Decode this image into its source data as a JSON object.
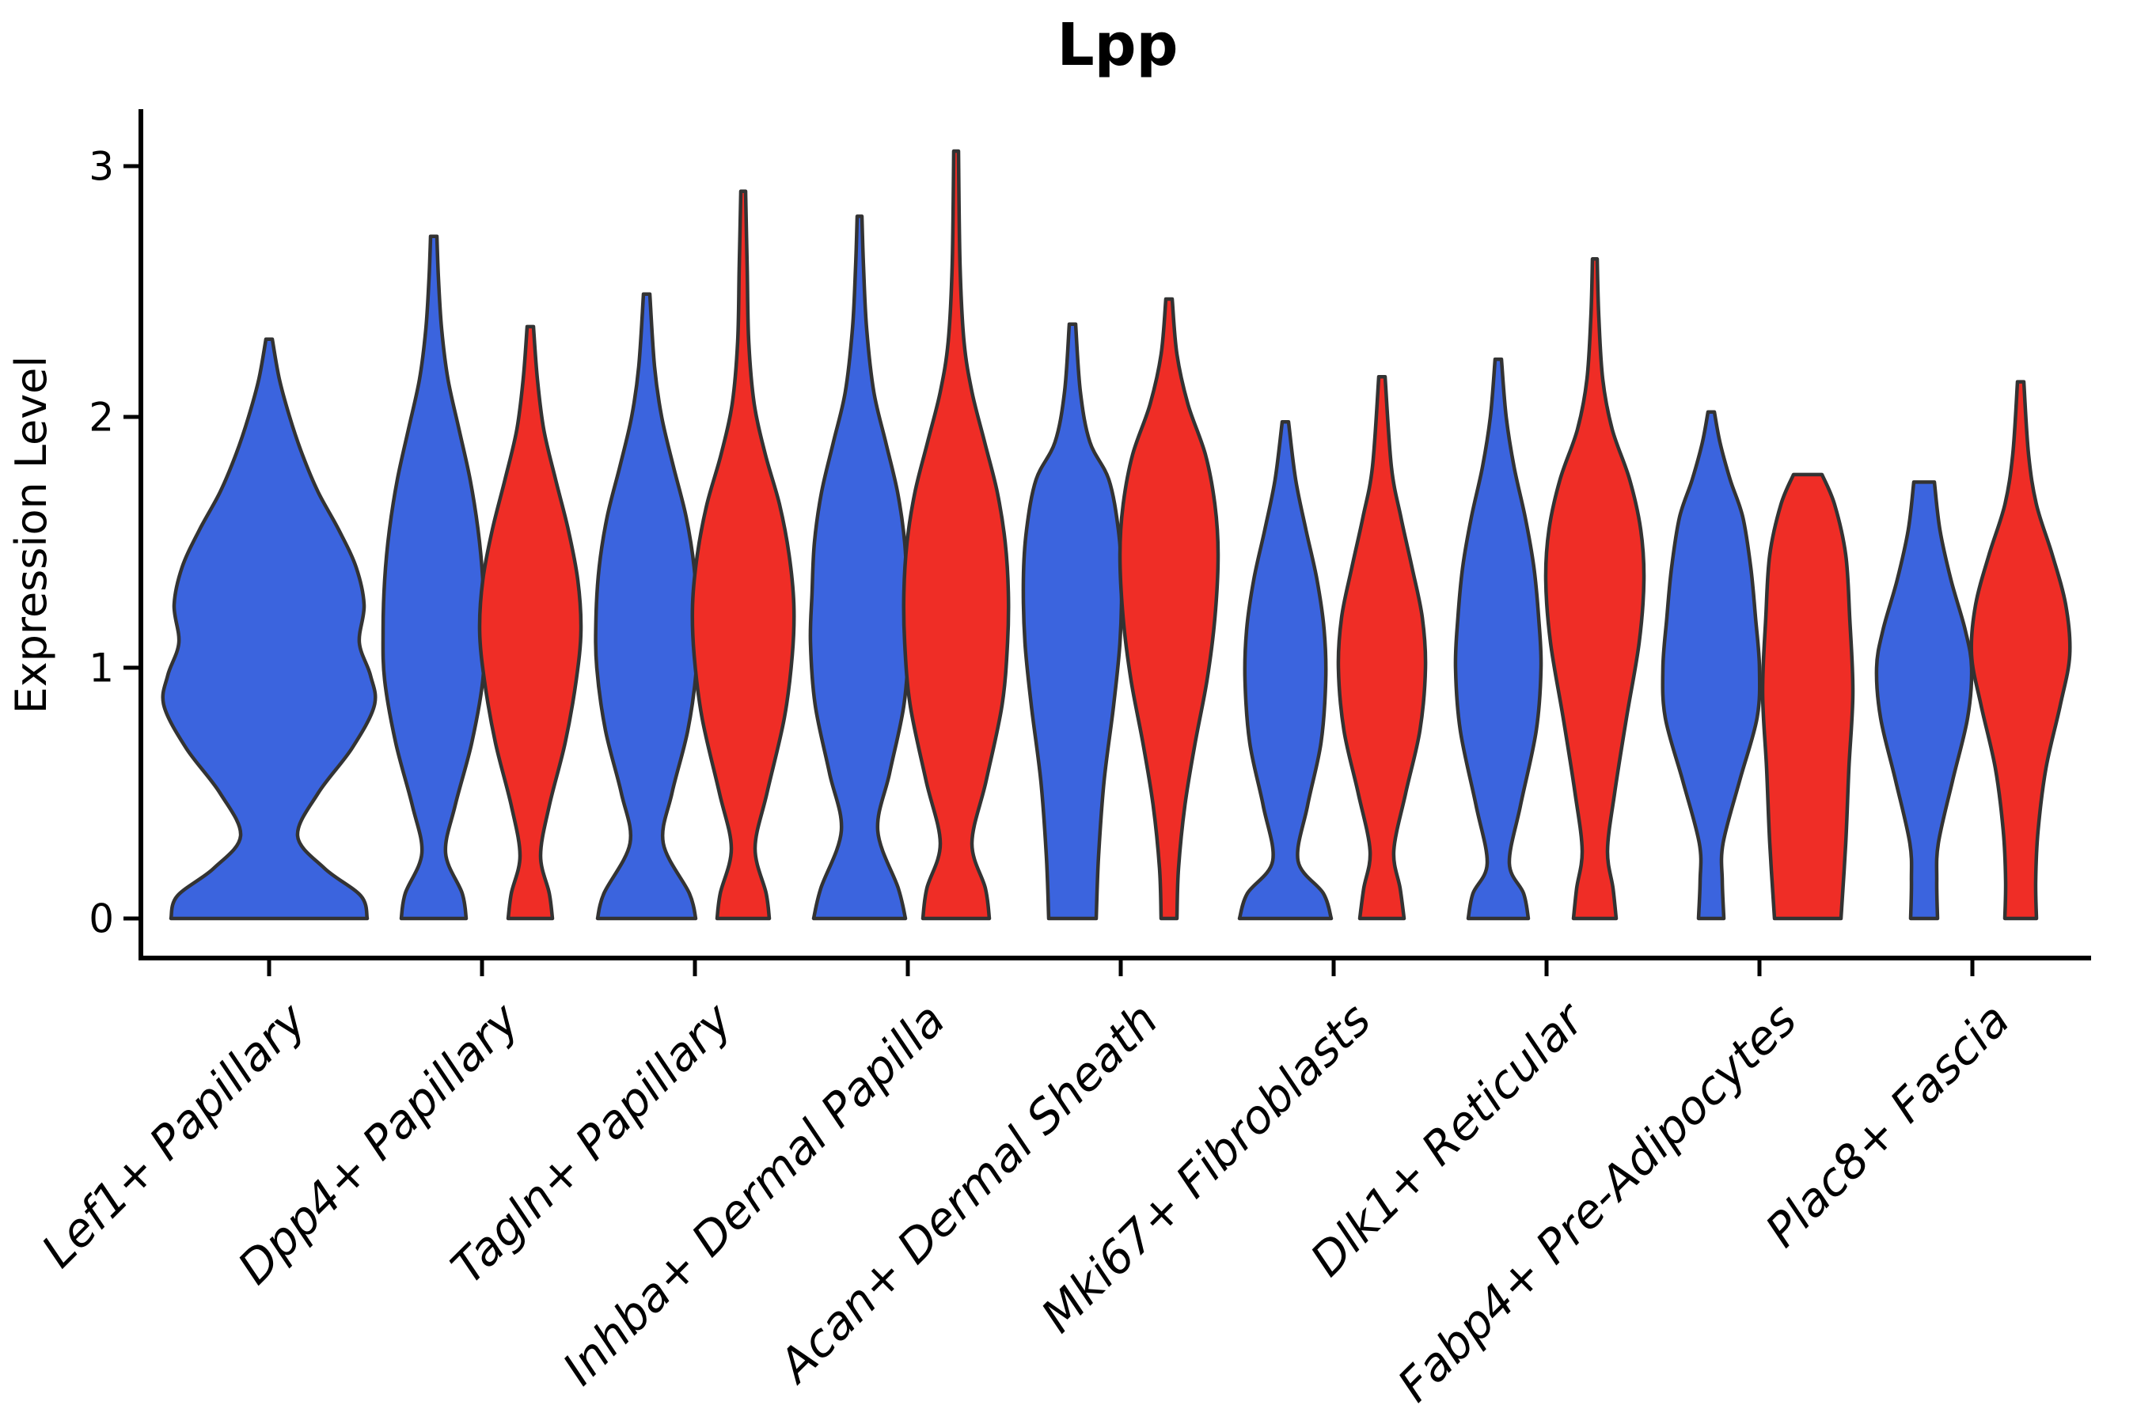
{
  "chart_data": {
    "type": "violin",
    "title": "Lpp",
    "xlabel": "",
    "ylabel": "Expression Level",
    "yticks": [
      "0",
      "1",
      "2",
      "3"
    ],
    "ylim": [
      -0.16,
      3.22
    ],
    "grid": "off",
    "legend": "none",
    "colors": {
      "group_a_fill": "#3B64DE",
      "group_b_fill": "#EF2D26",
      "violin_edge": "#333333",
      "axis": "#000000"
    },
    "categories": [
      "Lef1+ Papillary",
      "Dpp4+ Papillary",
      "Tagln+ Papillary",
      "Inhba+ Dermal Papilla",
      "Acan+ Dermal Sheath",
      "Mki67+ Fibroblasts",
      "Dlk1+ Reticular",
      "Fabp4+ Pre-Adipocytes",
      "Plac8+ Fascia"
    ],
    "violins": [
      {
        "category": "Lef1+ Papillary",
        "series": [
          {
            "group": "a",
            "max_expression": 2.31,
            "flat_top": false,
            "profile": [
              [
                0,
                124
              ],
              [
                0.09,
                116
              ],
              [
                0.2,
                70
              ],
              [
                0.33,
                36
              ],
              [
                0.5,
                62
              ],
              [
                0.68,
                105
              ],
              [
                0.85,
                133
              ],
              [
                0.97,
                128
              ],
              [
                1.1,
                114
              ],
              [
                1.25,
                120
              ],
              [
                1.4,
                110
              ],
              [
                1.55,
                88
              ],
              [
                1.7,
                62
              ],
              [
                1.85,
                42
              ],
              [
                2.0,
                26
              ],
              [
                2.15,
                13
              ],
              [
                2.31,
                4
              ]
            ]
          }
        ]
      },
      {
        "category": "Dpp4+ Papillary",
        "series": [
          {
            "group": "a",
            "max_expression": 2.72,
            "flat_top": false,
            "profile": [
              [
                0,
                41
              ],
              [
                0.1,
                36
              ],
              [
                0.26,
                15
              ],
              [
                0.45,
                27
              ],
              [
                0.7,
                48
              ],
              [
                0.95,
                62
              ],
              [
                1.15,
                64
              ],
              [
                1.35,
                62
              ],
              [
                1.55,
                56
              ],
              [
                1.75,
                46
              ],
              [
                1.95,
                32
              ],
              [
                2.15,
                18
              ],
              [
                2.35,
                10
              ],
              [
                2.55,
                6
              ],
              [
                2.72,
                4
              ]
            ]
          },
          {
            "group": "b",
            "max_expression": 2.36,
            "flat_top": false,
            "profile": [
              [
                0,
                28
              ],
              [
                0.1,
                24
              ],
              [
                0.25,
                13
              ],
              [
                0.45,
                24
              ],
              [
                0.7,
                44
              ],
              [
                0.95,
                58
              ],
              [
                1.15,
                64
              ],
              [
                1.35,
                60
              ],
              [
                1.55,
                48
              ],
              [
                1.75,
                32
              ],
              [
                1.95,
                17
              ],
              [
                2.15,
                9
              ],
              [
                2.36,
                4
              ]
            ]
          }
        ]
      },
      {
        "category": "Tagln+ Papillary",
        "series": [
          {
            "group": "a",
            "max_expression": 2.49,
            "flat_top": false,
            "profile": [
              [
                0,
                62
              ],
              [
                0.1,
                54
              ],
              [
                0.3,
                21
              ],
              [
                0.5,
                32
              ],
              [
                0.75,
                52
              ],
              [
                1.0,
                63
              ],
              [
                1.2,
                64
              ],
              [
                1.4,
                60
              ],
              [
                1.6,
                50
              ],
              [
                1.8,
                34
              ],
              [
                2.0,
                19
              ],
              [
                2.2,
                10
              ],
              [
                2.49,
                4
              ]
            ]
          },
          {
            "group": "b",
            "max_expression": 2.9,
            "flat_top": false,
            "profile": [
              [
                0,
                33
              ],
              [
                0.1,
                29
              ],
              [
                0.28,
                15
              ],
              [
                0.5,
                30
              ],
              [
                0.8,
                52
              ],
              [
                1.05,
                62
              ],
              [
                1.25,
                64
              ],
              [
                1.45,
                58
              ],
              [
                1.65,
                46
              ],
              [
                1.85,
                28
              ],
              [
                2.05,
                14
              ],
              [
                2.3,
                7
              ],
              [
                2.6,
                5
              ],
              [
                2.9,
                3
              ]
            ]
          }
        ]
      },
      {
        "category": "Inhba+ Dermal Papilla",
        "series": [
          {
            "group": "a",
            "max_expression": 2.8,
            "flat_top": false,
            "profile": [
              [
                0,
                58
              ],
              [
                0.12,
                49
              ],
              [
                0.35,
                23
              ],
              [
                0.58,
                38
              ],
              [
                0.85,
                56
              ],
              [
                1.1,
                62
              ],
              [
                1.3,
                60
              ],
              [
                1.5,
                57
              ],
              [
                1.7,
                48
              ],
              [
                1.9,
                33
              ],
              [
                2.1,
                18
              ],
              [
                2.35,
                9
              ],
              [
                2.6,
                5
              ],
              [
                2.8,
                3
              ]
            ]
          },
          {
            "group": "b",
            "max_expression": 3.06,
            "flat_top": false,
            "profile": [
              [
                0,
                42
              ],
              [
                0.12,
                37
              ],
              [
                0.3,
                20
              ],
              [
                0.55,
                38
              ],
              [
                0.85,
                58
              ],
              [
                1.1,
                65
              ],
              [
                1.3,
                66
              ],
              [
                1.5,
                62
              ],
              [
                1.7,
                52
              ],
              [
                1.9,
                36
              ],
              [
                2.1,
                20
              ],
              [
                2.3,
                10
              ],
              [
                2.6,
                5
              ],
              [
                3.06,
                3
              ]
            ]
          }
        ]
      },
      {
        "category": "Acan+ Dermal Sheath",
        "series": [
          {
            "group": "a",
            "max_expression": 2.37,
            "flat_top": false,
            "profile": [
              [
                0,
                30
              ],
              [
                0.25,
                33
              ],
              [
                0.55,
                40
              ],
              [
                0.85,
                52
              ],
              [
                1.1,
                60
              ],
              [
                1.35,
                62
              ],
              [
                1.55,
                58
              ],
              [
                1.75,
                46
              ],
              [
                1.9,
                22
              ],
              [
                2.1,
                10
              ],
              [
                2.37,
                4
              ]
            ]
          },
          {
            "group": "b",
            "max_expression": 2.47,
            "flat_top": false,
            "profile": [
              [
                0,
                10
              ],
              [
                0.2,
                12
              ],
              [
                0.45,
                20
              ],
              [
                0.7,
                33
              ],
              [
                0.95,
                48
              ],
              [
                1.2,
                58
              ],
              [
                1.45,
                62
              ],
              [
                1.65,
                58
              ],
              [
                1.85,
                46
              ],
              [
                2.05,
                24
              ],
              [
                2.25,
                10
              ],
              [
                2.47,
                4
              ]
            ]
          }
        ]
      },
      {
        "category": "Mki67+ Fibroblasts",
        "series": [
          {
            "group": "a",
            "max_expression": 1.98,
            "flat_top": false,
            "profile": [
              [
                0,
                58
              ],
              [
                0.1,
                48
              ],
              [
                0.23,
                16
              ],
              [
                0.45,
                28
              ],
              [
                0.7,
                45
              ],
              [
                0.95,
                51
              ],
              [
                1.15,
                49
              ],
              [
                1.35,
                40
              ],
              [
                1.55,
                26
              ],
              [
                1.75,
                13
              ],
              [
                1.98,
                4
              ]
            ]
          },
          {
            "group": "b",
            "max_expression": 2.16,
            "flat_top": false,
            "profile": [
              [
                0,
                28
              ],
              [
                0.12,
                23
              ],
              [
                0.27,
                15
              ],
              [
                0.5,
                30
              ],
              [
                0.75,
                48
              ],
              [
                1.0,
                55
              ],
              [
                1.2,
                51
              ],
              [
                1.4,
                38
              ],
              [
                1.6,
                24
              ],
              [
                1.8,
                12
              ],
              [
                2.16,
                4
              ]
            ]
          }
        ]
      },
      {
        "category": "Dlk1+ Reticular",
        "series": [
          {
            "group": "a",
            "max_expression": 2.23,
            "flat_top": false,
            "profile": [
              [
                0,
                38
              ],
              [
                0.1,
                32
              ],
              [
                0.22,
                14
              ],
              [
                0.45,
                28
              ],
              [
                0.75,
                48
              ],
              [
                1.0,
                54
              ],
              [
                1.2,
                51
              ],
              [
                1.4,
                45
              ],
              [
                1.6,
                34
              ],
              [
                1.8,
                20
              ],
              [
                2.0,
                10
              ],
              [
                2.23,
                4
              ]
            ]
          },
          {
            "group": "b",
            "max_expression": 2.63,
            "flat_top": false,
            "profile": [
              [
                0,
                27
              ],
              [
                0.12,
                23
              ],
              [
                0.27,
                16
              ],
              [
                0.5,
                25
              ],
              [
                0.8,
                40
              ],
              [
                1.1,
                56
              ],
              [
                1.35,
                62
              ],
              [
                1.55,
                58
              ],
              [
                1.75,
                44
              ],
              [
                1.95,
                22
              ],
              [
                2.15,
                10
              ],
              [
                2.4,
                5
              ],
              [
                2.63,
                3
              ]
            ]
          }
        ]
      },
      {
        "category": "Fabp4+ Pre-Adipocytes",
        "series": [
          {
            "group": "a",
            "max_expression": 2.02,
            "flat_top": false,
            "profile": [
              [
                0,
                16
              ],
              [
                0.15,
                14
              ],
              [
                0.3,
                15
              ],
              [
                0.55,
                36
              ],
              [
                0.8,
                58
              ],
              [
                1.0,
                61
              ],
              [
                1.2,
                56
              ],
              [
                1.4,
                50
              ],
              [
                1.6,
                40
              ],
              [
                1.75,
                24
              ],
              [
                1.9,
                11
              ],
              [
                2.02,
                4
              ]
            ]
          },
          {
            "group": "b",
            "max_expression": 1.77,
            "flat_top": true,
            "profile": [
              [
                0,
                42
              ],
              [
                0.3,
                48
              ],
              [
                0.6,
                52
              ],
              [
                0.9,
                57
              ],
              [
                1.2,
                53
              ],
              [
                1.45,
                48
              ],
              [
                1.65,
                34
              ],
              [
                1.77,
                18
              ]
            ]
          }
        ]
      },
      {
        "category": "Plac8+ Fascia",
        "series": [
          {
            "group": "a",
            "max_expression": 1.74,
            "flat_top": true,
            "profile": [
              [
                0,
                17
              ],
              [
                0.15,
                16
              ],
              [
                0.3,
                18
              ],
              [
                0.55,
                36
              ],
              [
                0.8,
                55
              ],
              [
                1.0,
                60
              ],
              [
                1.15,
                52
              ],
              [
                1.35,
                34
              ],
              [
                1.55,
                20
              ],
              [
                1.74,
                13
              ]
            ]
          },
          {
            "group": "b",
            "max_expression": 2.14,
            "flat_top": false,
            "profile": [
              [
                0,
                20
              ],
              [
                0.15,
                19
              ],
              [
                0.35,
                22
              ],
              [
                0.6,
                32
              ],
              [
                0.85,
                50
              ],
              [
                1.05,
                62
              ],
              [
                1.25,
                57
              ],
              [
                1.45,
                40
              ],
              [
                1.65,
                20
              ],
              [
                1.85,
                10
              ],
              [
                2.14,
                4
              ]
            ]
          }
        ]
      }
    ],
    "profile_units": "x = expression level, y = half-width in plot pixels"
  }
}
